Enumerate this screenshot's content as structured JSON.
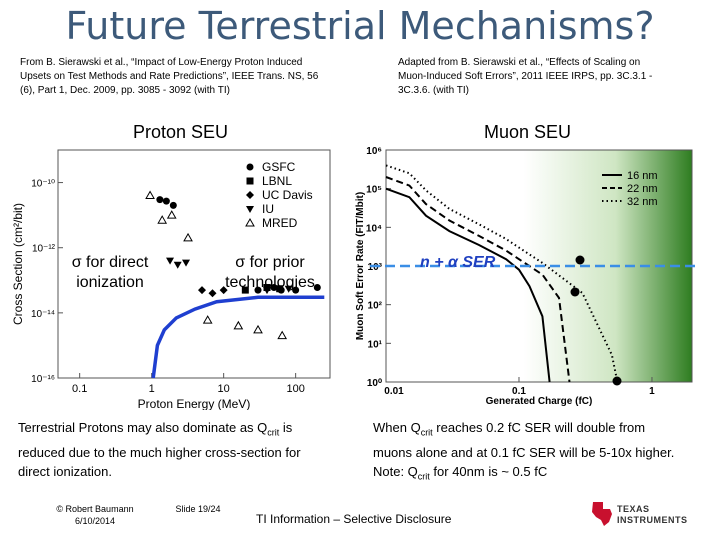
{
  "title": "Future Terrestrial Mechanisms?",
  "citations": {
    "left": [
      "From B. Sierawski et al., “Impact of Low-Energy Proton Induced",
      "Upsets on Test Methods and Rate Predictions”, IEEE Trans. NS, 56",
      "(6), Part 1, Dec. 2009, pp. 3085 - 3092 (with TI)"
    ],
    "right": [
      "Adapted from B. Sierawski et al., “Effects of Scaling on",
      "Muon-Induced Soft Errors”, 2011 IEEE IRPS, pp. 3C.3.1 -",
      "3C.3.6. (with TI)"
    ]
  },
  "proton_plot": {
    "title": "Proton SEU",
    "xlabel": "Proton Energy (MeV)",
    "ylabel": "Cross Section (cm²/bit)",
    "x_ticks": [
      "0.1",
      "1",
      "10",
      "100"
    ],
    "y_ticks": [
      "10⁻¹⁰",
      "10⁻¹²",
      "10⁻¹⁴",
      "10⁻¹⁶"
    ],
    "legend": [
      "GSFC",
      "LBNL",
      "UC Davis",
      "IU",
      "MRED"
    ],
    "annotation_left": [
      "σ for direct",
      "ionization"
    ],
    "annotation_right": [
      "σ for prior",
      "technologies"
    ]
  },
  "muon_plot": {
    "title": "Muon SEU",
    "xlabel": "Generated Charge (fC)",
    "ylabel": "Muon Soft Error Rate (FIT/Mbit)",
    "x_ticks": [
      "0.01",
      "0.1",
      "1"
    ],
    "y_ticks": [
      "10⁶",
      "10⁵",
      "10⁴",
      "10³",
      "10²",
      "10¹",
      "10⁰"
    ],
    "legend": [
      "16 nm",
      "22 nm",
      "32 nm"
    ],
    "annotation": "n + α SER"
  },
  "notes": {
    "left": [
      "Terrestrial Protons may also dominate as Q",
      "crit",
      " is",
      "reduced due to the much higher cross-section for",
      "direct ionization."
    ],
    "right_line1": [
      "When Q",
      "crit",
      " reaches 0.2 fC SER will double from"
    ],
    "right_line2": "muons alone and at 0.1 fC SER will be 5-10x higher.",
    "right_line3": [
      "Note: Q",
      "crit",
      " for 40nm is  ~ 0.5 fC"
    ]
  },
  "footer": {
    "author": "© Robert Baumann",
    "date": "6/10/2014",
    "slide": "Slide  19/24",
    "tag": "TI Information – Selective Disclosure",
    "logo_line1": "TEXAS",
    "logo_line2": "INSTRUMENTS"
  },
  "chart_data": [
    {
      "type": "scatter",
      "title": "Proton SEU",
      "xlabel": "Proton Energy (MeV)",
      "ylabel": "Cross Section (cm²/bit)",
      "xscale": "log",
      "yscale": "log",
      "xlim": [
        0.05,
        300
      ],
      "ylim": [
        1e-16,
        1e-09
      ],
      "series": [
        {
          "name": "GSFC",
          "x": [
            1.3,
            1.6,
            2.0,
            30,
            50,
            63,
            100,
            200
          ],
          "y": [
            3e-11,
            2.7e-11,
            2e-11,
            5e-14,
            6e-14,
            5e-14,
            5e-14,
            6e-14
          ]
        },
        {
          "name": "LBNL",
          "x": [
            20,
            40,
            60
          ],
          "y": [
            5e-14,
            6e-14,
            5.5e-14
          ]
        },
        {
          "name": "UC Davis",
          "x": [
            5,
            7,
            10
          ],
          "y": [
            5e-14,
            4e-14,
            5e-14
          ]
        },
        {
          "name": "IU",
          "x": [
            1.8,
            2.3,
            3.0,
            40,
            80
          ],
          "y": [
            4e-13,
            3e-13,
            3.5e-13,
            5e-14,
            5.5e-14
          ]
        },
        {
          "name": "MRED",
          "x": [
            0.95,
            1.4,
            1.9,
            3.2,
            6,
            16,
            30,
            65
          ],
          "y": [
            4e-11,
            7e-12,
            1e-11,
            2e-12,
            6e-15,
            4e-15,
            3e-15,
            2e-15
          ]
        }
      ]
    },
    {
      "type": "line",
      "title": "Muon SEU",
      "xlabel": "Generated Charge (fC)",
      "ylabel": "Muon Soft Error Rate (FIT/Mbit)",
      "xscale": "log",
      "yscale": "log",
      "xlim": [
        0.01,
        2
      ],
      "ylim": [
        1,
        1000000
      ],
      "series": [
        {
          "name": "16 nm",
          "x": [
            0.01,
            0.015,
            0.02,
            0.03,
            0.05,
            0.08,
            0.1,
            0.12,
            0.15,
            0.17
          ],
          "y": [
            100000,
            60000,
            20000,
            8000,
            3500,
            1500,
            800,
            300,
            50,
            1
          ]
        },
        {
          "name": "22 nm",
          "x": [
            0.01,
            0.015,
            0.02,
            0.03,
            0.05,
            0.08,
            0.1,
            0.15,
            0.2,
            0.24
          ],
          "y": [
            200000,
            120000,
            40000,
            15000,
            6000,
            2500,
            1500,
            600,
            150,
            1
          ]
        },
        {
          "name": "32 nm",
          "x": [
            0.01,
            0.015,
            0.02,
            0.03,
            0.05,
            0.08,
            0.1,
            0.15,
            0.3,
            0.5,
            0.55
          ],
          "y": [
            400000,
            250000,
            90000,
            30000,
            12000,
            5000,
            3000,
            1200,
            200,
            5,
            1
          ]
        }
      ],
      "reference_lines": [
        {
          "label": "n + α SER",
          "y": 1000
        }
      ]
    }
  ]
}
